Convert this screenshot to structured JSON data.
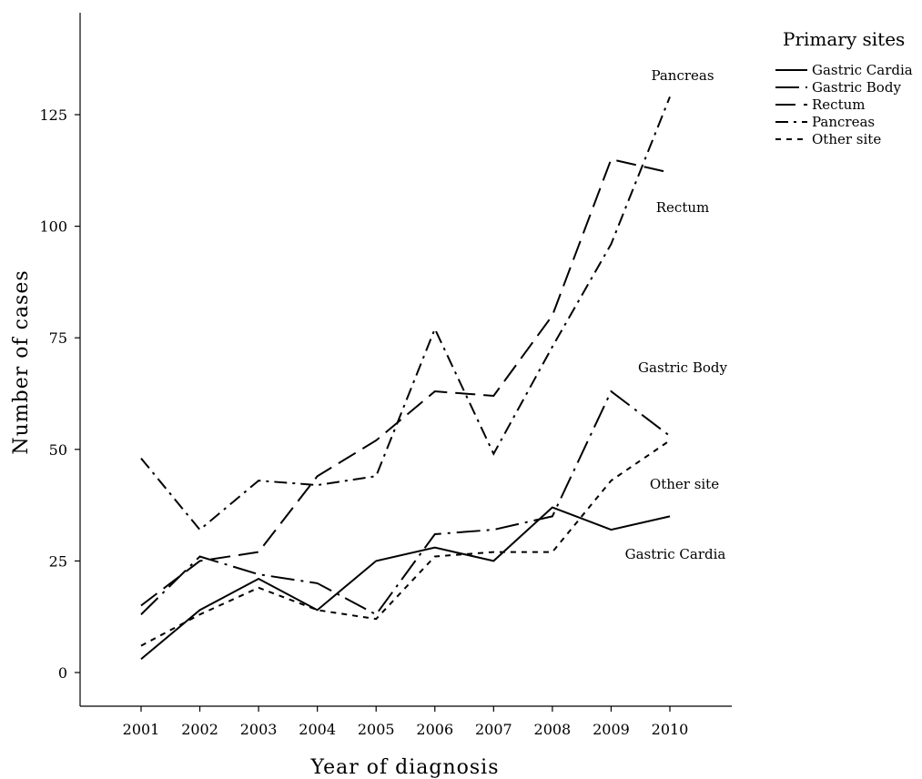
{
  "chart_data": {
    "type": "line",
    "xlabel": "Year of diagnosis",
    "ylabel": "Number of cases",
    "x": [
      2001,
      2002,
      2003,
      2004,
      2005,
      2006,
      2007,
      2008,
      2009,
      2010
    ],
    "x_ticks": [
      "2001",
      "2002",
      "2003",
      "2004",
      "2005",
      "2006",
      "2007",
      "2008",
      "2009",
      "2010"
    ],
    "y_ticks": [
      "0",
      "25",
      "50",
      "75",
      "100",
      "125"
    ],
    "ylim": [
      -7,
      147
    ],
    "grid": false,
    "legend": {
      "title": "Primary sites",
      "position": "top-right"
    },
    "series": [
      {
        "name": "Gastric Cardia",
        "label": "Gastric Cardia",
        "dash": "solid",
        "values": [
          3,
          14,
          21,
          14,
          25,
          28,
          25,
          37,
          32,
          35
        ]
      },
      {
        "name": "Gastric Body",
        "label": "Gastric Body",
        "dash": "long-dash-dot",
        "values": [
          13,
          26,
          22,
          20,
          13,
          31,
          32,
          35,
          63,
          53
        ]
      },
      {
        "name": "Rectum",
        "label": "Rectum",
        "dash": "dash",
        "values": [
          15,
          25,
          27,
          44,
          52,
          63,
          62,
          80,
          115,
          112
        ]
      },
      {
        "name": "Pancreas",
        "label": "Pancreas",
        "dash": "dash-dot",
        "values": [
          48,
          32,
          43,
          42,
          44,
          77,
          49,
          73,
          96,
          129
        ]
      },
      {
        "name": "Other site",
        "label": "Other site",
        "dash": "short-dash",
        "values": [
          6,
          13,
          19,
          14,
          12,
          26,
          27,
          27,
          43,
          52
        ]
      }
    ]
  }
}
